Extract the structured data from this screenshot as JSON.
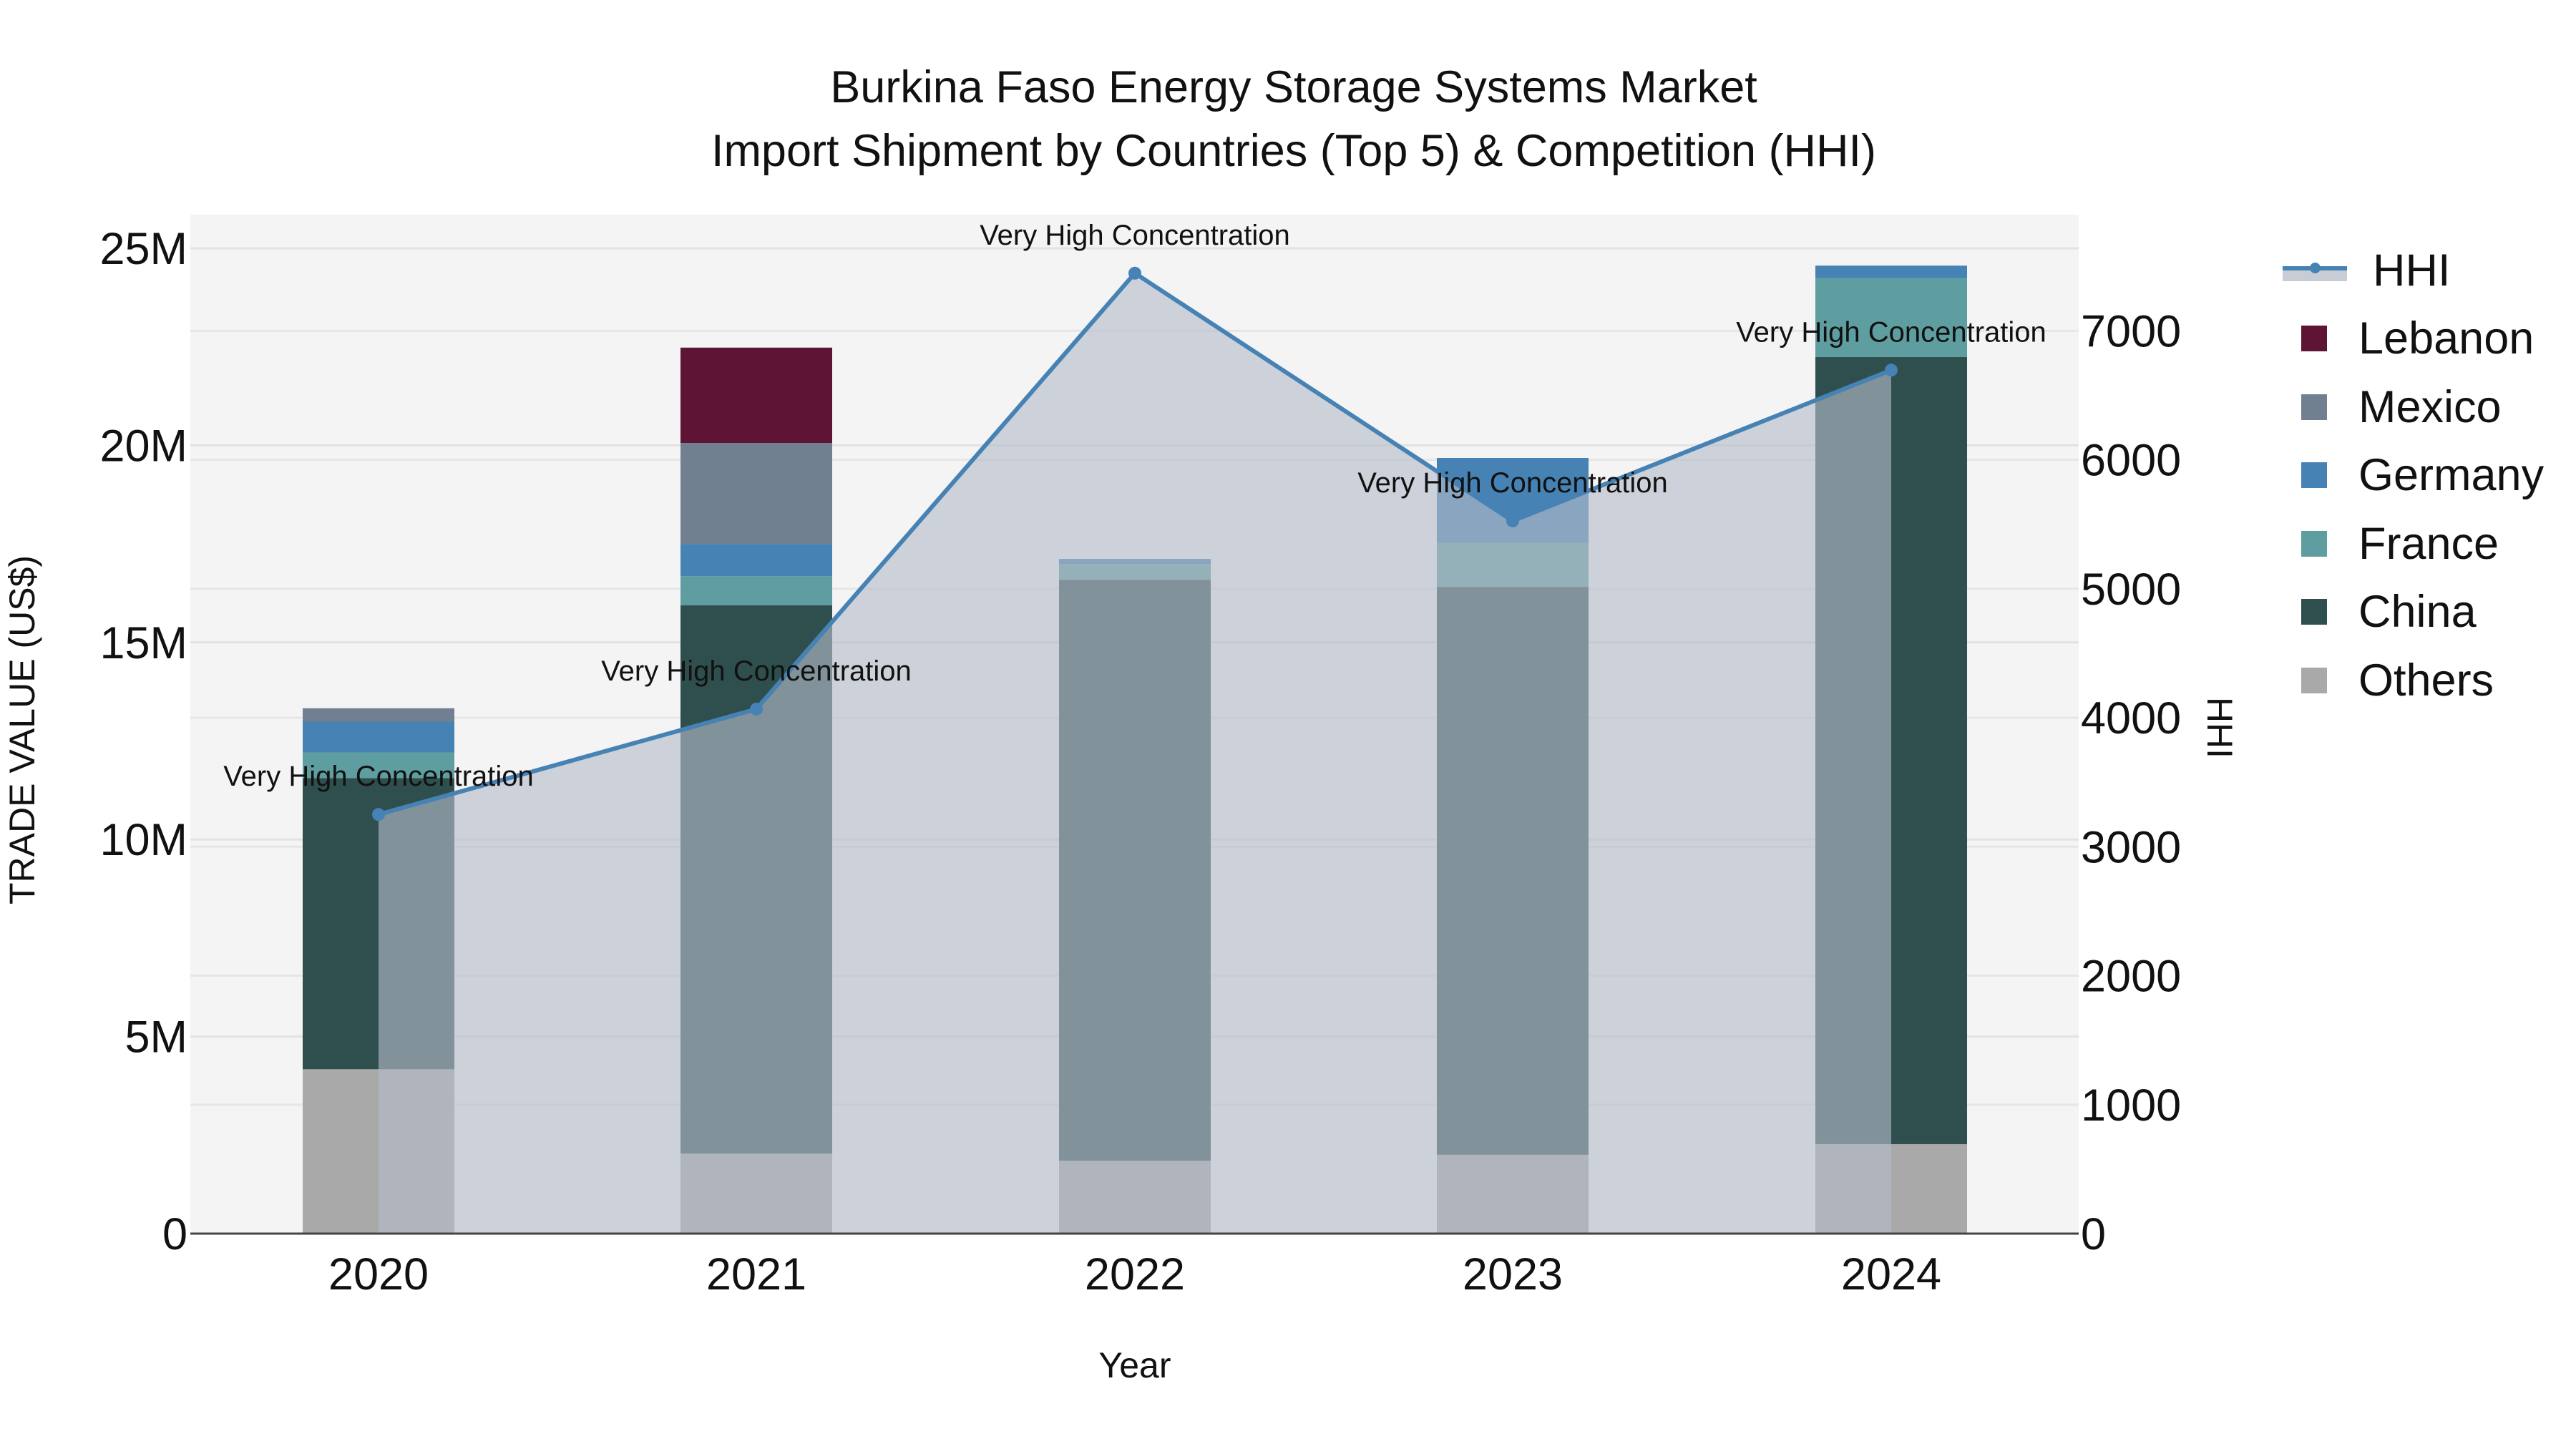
{
  "title": {
    "line1": "Burkina Faso Energy Storage Systems Market",
    "line2": "Import Shipment by Countries (Top 5) & Competition (HHI)"
  },
  "axes": {
    "x_label": "Year",
    "y_left_label": "TRADE VALUE (US$)",
    "y_right_label": "HHI",
    "y_left_ticks": [
      "0",
      "5M",
      "10M",
      "15M",
      "20M",
      "25M"
    ],
    "y_right_ticks": [
      "0",
      "1000",
      "2000",
      "3000",
      "4000",
      "5000",
      "6000",
      "7000"
    ]
  },
  "legend": [
    {
      "name": "HHI",
      "type": "line",
      "color": "#4682b4"
    },
    {
      "name": "Lebanon",
      "type": "bar",
      "color": "#5e1434"
    },
    {
      "name": "Mexico",
      "type": "bar",
      "color": "#708090"
    },
    {
      "name": "Germany",
      "type": "bar",
      "color": "#4682b4"
    },
    {
      "name": "France",
      "type": "bar",
      "color": "#5f9ea0"
    },
    {
      "name": "China",
      "type": "bar",
      "color": "#2f4f4f"
    },
    {
      "name": "Others",
      "type": "bar",
      "color": "#a9a9a9"
    }
  ],
  "chart_data": {
    "type": "bar",
    "stacked": true,
    "title": "Burkina Faso Energy Storage Systems Market\nImport Shipment by Countries (Top 5) & Competition (HHI)",
    "xlabel": "Year",
    "ylabel": "TRADE VALUE (US$)",
    "y2label": "HHI",
    "categories": [
      "2020",
      "2021",
      "2022",
      "2023",
      "2024"
    ],
    "ylim": [
      0,
      25900000
    ],
    "y2lim": [
      0,
      7940
    ],
    "series": [
      {
        "name": "Others",
        "color": "#a9a9a9",
        "values": [
          4170000,
          2030000,
          1850000,
          2000000,
          2270000
        ]
      },
      {
        "name": "China",
        "color": "#2f4f4f",
        "values": [
          7390000,
          13910000,
          14740000,
          14410000,
          19970000
        ]
      },
      {
        "name": "France",
        "color": "#5f9ea0",
        "values": [
          650000,
          740000,
          400000,
          1120000,
          2000000
        ]
      },
      {
        "name": "Germany",
        "color": "#4682b4",
        "values": [
          780000,
          820000,
          130000,
          2150000,
          320000
        ]
      },
      {
        "name": "Mexico",
        "color": "#708090",
        "values": [
          340000,
          2560000,
          0,
          0,
          0
        ]
      },
      {
        "name": "Lebanon",
        "color": "#5e1434",
        "values": [
          0,
          2420000,
          0,
          0,
          0
        ]
      }
    ],
    "line_series": {
      "name": "HHI",
      "axis": "right",
      "color": "#4682b4",
      "fill": "tozeroy",
      "values": [
        3250,
        4067,
        7447,
        5526,
        6695
      ],
      "annotations": [
        "Very High Concentration",
        "Very High Concentration",
        "Very High Concentration",
        "Very High Concentration",
        "Very High Concentration"
      ]
    },
    "grid": true,
    "legend_position": "right"
  }
}
